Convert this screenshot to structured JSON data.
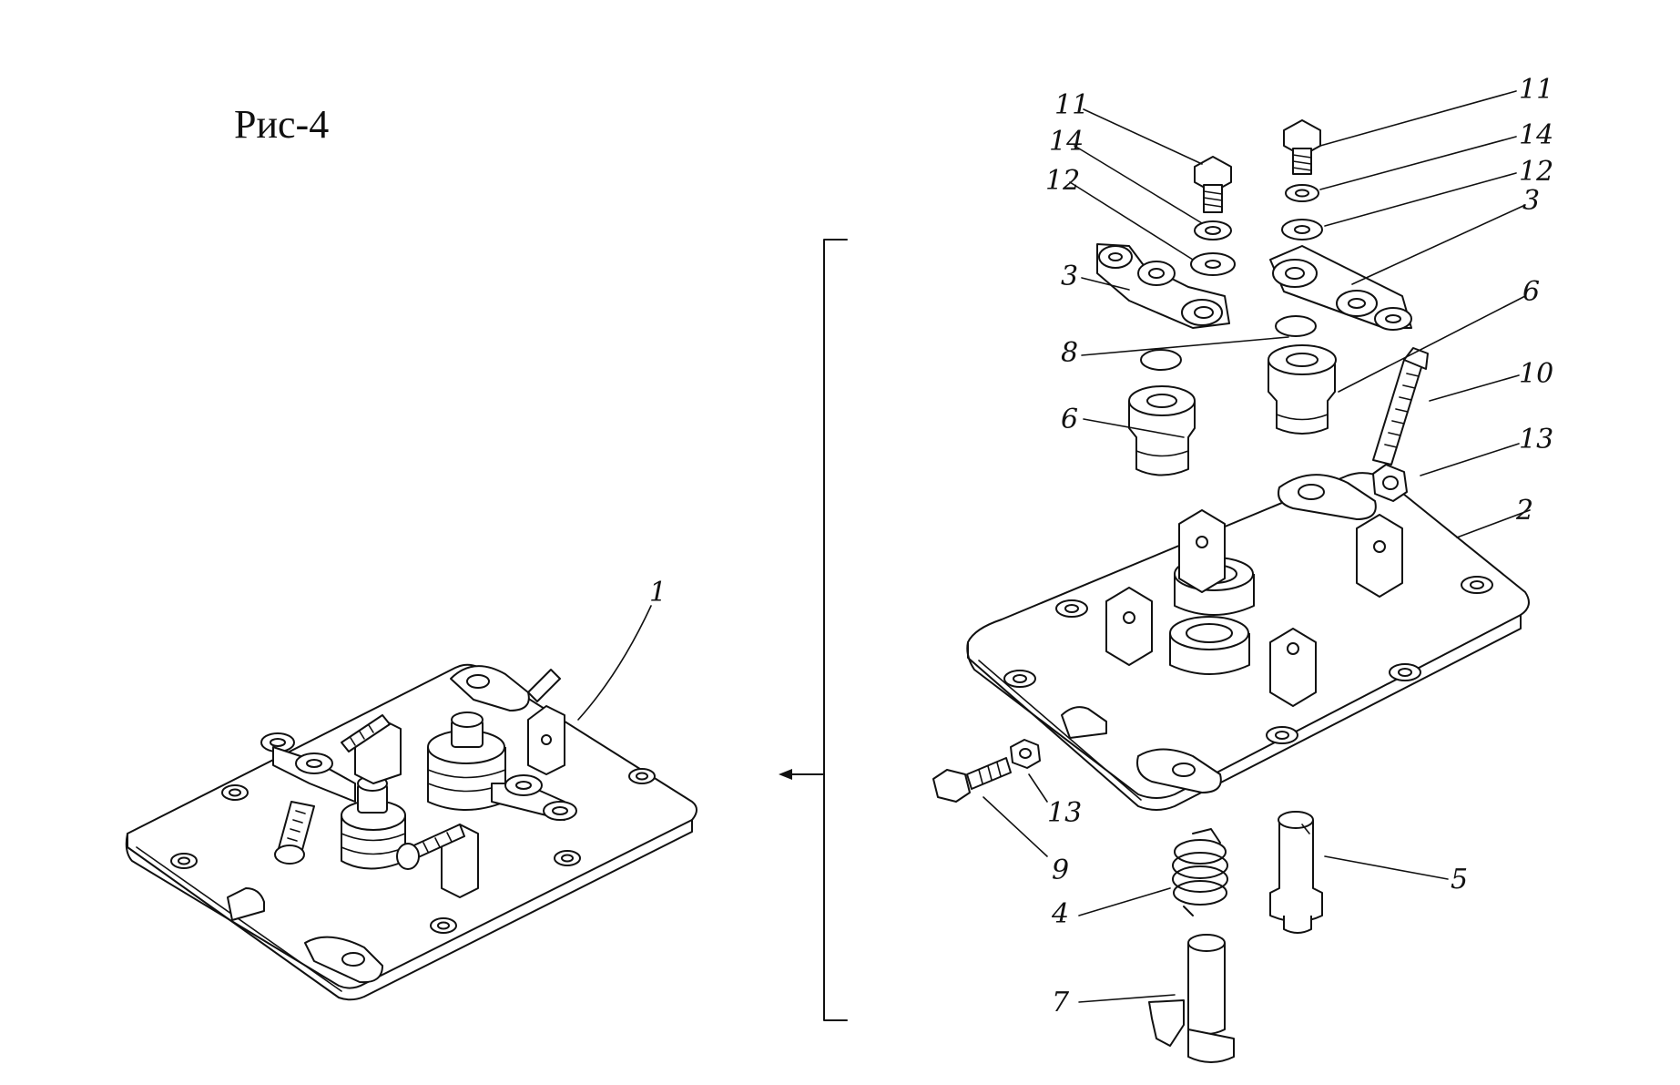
{
  "figure": {
    "title": "Рис-4"
  },
  "callouts": {
    "assembly": "1",
    "plate": "2",
    "lever_left": "3",
    "lever_right": "3",
    "spring": "4",
    "pin": "5",
    "bushing_left": "6",
    "bushing_right": "6",
    "latch": "7",
    "o_ring": "8",
    "bolt_lower": "9",
    "stud": "10",
    "bolt_left": "11",
    "bolt_right": "11",
    "washer_left": "12",
    "washer_right": "12",
    "nut_lower": "13",
    "nut_upper": "13",
    "lockwasher_left": "14",
    "lockwasher_right": "14"
  }
}
